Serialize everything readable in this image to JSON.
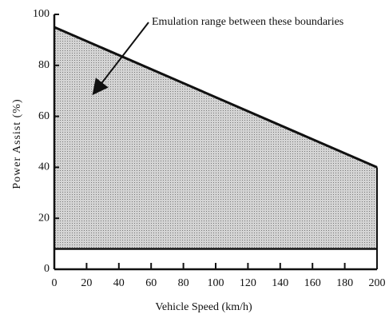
{
  "chart_data": {
    "type": "range-area",
    "annotation": "Emulation range between these boundaries",
    "xlabel": "Vehicle Speed (km/h)",
    "ylabel": "Power Assist (%)",
    "x": [
      0,
      200
    ],
    "series": [
      {
        "values": [
          95,
          40
        ]
      },
      {
        "values": [
          8,
          8
        ]
      }
    ],
    "color": "#c6c6c6",
    "xlim": [
      0,
      200
    ],
    "xticks": [
      0,
      20,
      40,
      60,
      80,
      100,
      120,
      140,
      160,
      180,
      200
    ],
    "ylim": [
      0,
      100
    ],
    "yticks": [
      0,
      20,
      40,
      60,
      80,
      100
    ]
  }
}
